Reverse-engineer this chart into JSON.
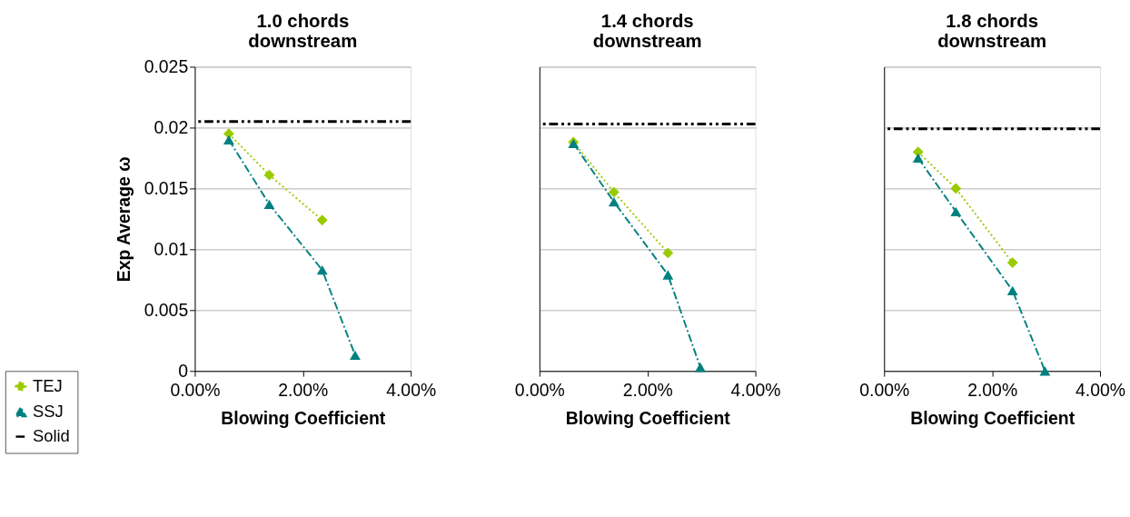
{
  "chart_data": [
    {
      "type": "line",
      "title": "1.0 chords downstream",
      "xlabel": "Blowing Coefficient",
      "ylabel": "Exp Average ω",
      "xlim": [
        0,
        0.04
      ],
      "xticks": [
        {
          "value": 0,
          "label": "0.00%"
        },
        {
          "value": 0.02,
          "label": "2.00%"
        },
        {
          "value": 0.04,
          "label": "4.00%"
        }
      ],
      "ylim": [
        0,
        0.025
      ],
      "yticks": [
        0,
        0.005,
        0.01,
        0.015,
        0.02,
        0.025
      ],
      "grid": "y",
      "legend": "bottom left",
      "series": [
        {
          "name": "TEJ",
          "color": "#99cc00",
          "marker": "diamond",
          "line_style": "dotted",
          "x": [
            0.0063,
            0.0138,
            0.0236
          ],
          "values": [
            0.0195,
            0.0161,
            0.0124
          ]
        },
        {
          "name": "SSJ",
          "color": "#008080",
          "marker": "triangle",
          "line_style": "dashdot",
          "x": [
            0.0063,
            0.0138,
            0.0236,
            0.0297
          ],
          "values": [
            0.019,
            0.0137,
            0.0083,
            0.0013
          ]
        }
      ],
      "ref_lines": [
        {
          "axis": "y",
          "value": 0.0205,
          "label": "Solid",
          "color": "#000000",
          "line_style": "dashdotdot"
        }
      ]
    },
    {
      "type": "line",
      "title": "1.4 chords downstream",
      "xlabel": "Blowing Coefficient",
      "xlim": [
        0,
        0.04
      ],
      "xticks": [
        {
          "value": 0,
          "label": "0.00%"
        },
        {
          "value": 0.02,
          "label": "2.00%"
        },
        {
          "value": 0.04,
          "label": "4.00%"
        }
      ],
      "ylim": [
        0,
        0.025
      ],
      "yticks": [
        0,
        0.005,
        0.01,
        0.015,
        0.02,
        0.025
      ],
      "grid": "y",
      "tick_labels": "x",
      "series": [
        {
          "color": "#99cc00",
          "marker": "diamond",
          "line_style": "dotted",
          "x": [
            0.0063,
            0.0138,
            0.0238
          ],
          "values": [
            0.0188,
            0.0147,
            0.0097
          ]
        },
        {
          "color": "#008080",
          "marker": "triangle",
          "line_style": "dashdot",
          "x": [
            0.0063,
            0.0138,
            0.0238,
            0.0298
          ],
          "values": [
            0.0187,
            0.0139,
            0.0079,
            0.0003
          ]
        }
      ],
      "ref_lines": [
        {
          "axis": "y",
          "value": 0.0203,
          "color": "#000000",
          "line_style": "dashdotdot"
        }
      ]
    },
    {
      "type": "line",
      "title": "1.8 chords downstream",
      "xlabel": "Blowing Coefficient",
      "xlim": [
        0,
        0.04
      ],
      "xticks": [
        {
          "value": 0,
          "label": "0.00%"
        },
        {
          "value": 0.02,
          "label": "2.00%"
        },
        {
          "value": 0.04,
          "label": "4.00%"
        }
      ],
      "ylim": [
        0,
        0.025
      ],
      "yticks": [
        0,
        0.005,
        0.01,
        0.015,
        0.02,
        0.025
      ],
      "grid": "y",
      "tick_labels": "x",
      "series": [
        {
          "color": "#99cc00",
          "marker": "diamond",
          "line_style": "dotted",
          "x": [
            0.0063,
            0.0133,
            0.0238
          ],
          "values": [
            0.018,
            0.015,
            0.0089
          ]
        },
        {
          "color": "#008080",
          "marker": "triangle",
          "line_style": "dashdot",
          "x": [
            0.0063,
            0.0133,
            0.0238,
            0.0298
          ],
          "values": [
            0.0175,
            0.0131,
            0.0066,
            0.0
          ]
        }
      ],
      "ref_lines": [
        {
          "axis": "y",
          "value": 0.0199,
          "color": "#000000",
          "line_style": "dashdotdot"
        }
      ]
    }
  ]
}
